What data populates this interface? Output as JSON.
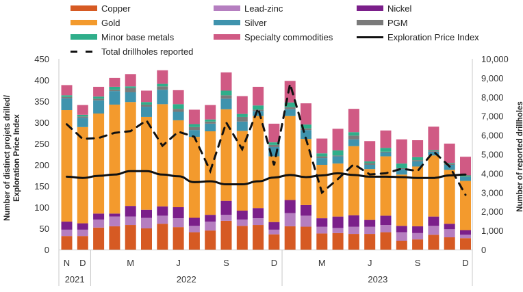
{
  "chart_data": {
    "type": "bar",
    "subtype": "stacked-bar-with-lines",
    "title": "",
    "legend_position": "top",
    "legend": [
      {
        "name": "Copper",
        "kind": "bar",
        "color": "#d65a23"
      },
      {
        "name": "Lead-zinc",
        "kind": "bar",
        "color": "#b57ec0"
      },
      {
        "name": "Nickel",
        "kind": "bar",
        "color": "#7b1f8a"
      },
      {
        "name": "Gold",
        "kind": "bar",
        "color": "#f39a2d"
      },
      {
        "name": "Silver",
        "kind": "bar",
        "color": "#3f93ad"
      },
      {
        "name": "PGM",
        "kind": "bar",
        "color": "#7a7a7a"
      },
      {
        "name": "Minor base metals",
        "kind": "bar",
        "color": "#2fae8a"
      },
      {
        "name": "Specialty commodities",
        "kind": "bar",
        "color": "#d05a84"
      },
      {
        "name": "Exploration Price Index",
        "kind": "line",
        "color": "#111111"
      },
      {
        "name": "Total drillholes reported",
        "kind": "dashed-line",
        "color": "#111111"
      }
    ],
    "months": [
      "Nov 2021",
      "Dec 2021",
      "Jan 2022",
      "Feb 2022",
      "Mar 2022",
      "Apr 2022",
      "May 2022",
      "Jun 2022",
      "Jul 2022",
      "Aug 2022",
      "Sep 2022",
      "Oct 2022",
      "Nov 2022",
      "Dec 2022",
      "Jan 2023",
      "Feb 2023",
      "Mar 2023",
      "Apr 2023",
      "May 2023",
      "Jun 2023",
      "Jul 2023",
      "Aug 2023",
      "Sep 2023",
      "Oct 2023",
      "Nov 2023",
      "Dec 2023"
    ],
    "x_tick_labels": [
      {
        "label": "N",
        "index": 0
      },
      {
        "label": "D",
        "index": 1
      },
      {
        "label": "M",
        "index": 4
      },
      {
        "label": "J",
        "index": 7
      },
      {
        "label": "S",
        "index": 10
      },
      {
        "label": "D",
        "index": 13
      },
      {
        "label": "M",
        "index": 16
      },
      {
        "label": "J",
        "index": 19
      },
      {
        "label": "S",
        "index": 22
      },
      {
        "label": "D",
        "index": 25
      }
    ],
    "x_year_groups": [
      {
        "label": "2021",
        "start": 0,
        "end": 1
      },
      {
        "label": "2022",
        "start": 2,
        "end": 13
      },
      {
        "label": "2023",
        "start": 14,
        "end": 25
      }
    ],
    "series": [
      {
        "name": "Copper",
        "axis": "left",
        "values": [
          32,
          32,
          52,
          55,
          58,
          50,
          61,
          53,
          41,
          45,
          68,
          56,
          58,
          36,
          55,
          54,
          38,
          39,
          37,
          37,
          41,
          21,
          24,
          35,
          29,
          27
        ]
      },
      {
        "name": "Lead-zinc",
        "axis": "left",
        "values": [
          15,
          15,
          19,
          23,
          20,
          25,
          19,
          21,
          15,
          21,
          14,
          15,
          16,
          11,
          31,
          26,
          16,
          12,
          17,
          17,
          17,
          20,
          15,
          21,
          19,
          8
        ]
      },
      {
        "name": "Nickel",
        "axis": "left",
        "values": [
          19,
          15,
          14,
          7,
          25,
          19,
          22,
          26,
          19,
          16,
          33,
          21,
          24,
          18,
          31,
          25,
          20,
          27,
          27,
          16,
          22,
          15,
          16,
          22,
          13,
          11
        ]
      },
      {
        "name": "Gold",
        "axis": "left",
        "values": [
          263,
          227,
          236,
          257,
          245,
          219,
          241,
          205,
          191,
          197,
          216,
          188,
          217,
          155,
          198,
          156,
          126,
          125,
          163,
          120,
          140,
          121,
          141,
          144,
          127,
          116
        ]
      },
      {
        "name": "Silver",
        "axis": "left",
        "values": [
          28,
          22,
          31,
          32,
          23,
          24,
          34,
          20,
          16,
          18,
          25,
          22,
          12,
          22,
          16,
          21,
          16,
          17,
          16,
          10,
          9,
          13,
          12,
          9,
          12,
          9
        ]
      },
      {
        "name": "PGM",
        "axis": "left",
        "values": [
          3,
          3,
          4,
          3,
          10,
          5,
          8,
          7,
          7,
          5,
          8,
          11,
          3,
          5,
          5,
          4,
          4,
          2,
          9,
          4,
          2,
          2,
          3,
          2,
          2,
          1
        ]
      },
      {
        "name": "Minor base metals",
        "axis": "left",
        "values": [
          4,
          4,
          5,
          7,
          4,
          6,
          6,
          11,
          7,
          5,
          11,
          7,
          10,
          6,
          11,
          9,
          7,
          12,
          8,
          4,
          9,
          11,
          7,
          2,
          2,
          3
        ]
      },
      {
        "name": "Specialty commodities",
        "axis": "left",
        "values": [
          24,
          23,
          23,
          21,
          29,
          27,
          32,
          33,
          34,
          34,
          43,
          42,
          44,
          44,
          51,
          50,
          35,
          51,
          55,
          48,
          41,
          57,
          40,
          55,
          46,
          44
        ]
      },
      {
        "name": "Exploration Price Index",
        "axis": "left",
        "values": [
          172,
          169,
          174,
          177,
          185,
          185,
          177,
          173,
          159,
          161,
          154,
          154,
          161,
          170,
          176,
          171,
          175,
          180,
          176,
          172,
          172,
          171,
          169,
          169,
          175,
          177
        ]
      },
      {
        "name": "Total drillholes reported",
        "axis": "right",
        "values": [
          6570,
          5800,
          5850,
          6120,
          6210,
          6770,
          5440,
          6180,
          5910,
          4120,
          6660,
          5260,
          7410,
          4420,
          8690,
          5800,
          2990,
          3700,
          4480,
          3940,
          4000,
          4240,
          4120,
          5140,
          4360,
          2870
        ]
      }
    ],
    "ylabel": "Number of distinct projets drilled/ Exploration Price Index",
    "ylabel_lines": [
      "Number of distinct projets drilled/",
      "Exploration Price Index"
    ],
    "y2label": "Number of reported drillholes",
    "ylim": [
      0,
      450
    ],
    "y_ticks": [
      0,
      50,
      100,
      150,
      200,
      250,
      300,
      350,
      400,
      450
    ],
    "y2lim": [
      0,
      10000
    ],
    "y2_ticks": [
      "0",
      "1,000",
      "2,000",
      "3,000",
      "4,000",
      "5,000",
      "6,000",
      "7,000",
      "8,000",
      "9,000",
      "10,000"
    ],
    "grid": false
  }
}
